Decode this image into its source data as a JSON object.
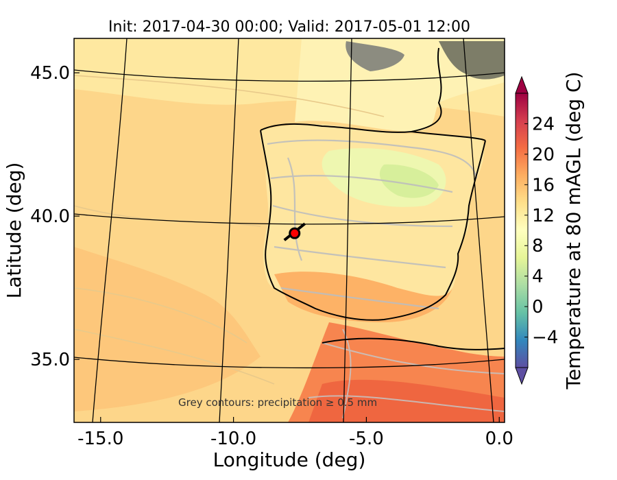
{
  "chart_data": {
    "type": "heatmap",
    "title": "Init: 2017-04-30 00:00; Valid: 2017-05-01 12:00",
    "xlabel": "Longitude (deg)",
    "ylabel": "Latitude (deg)",
    "xlim": [
      -16,
      0.2
    ],
    "ylim": [
      32.8,
      46.2
    ],
    "x_ticks": [
      {
        "value": -15,
        "label": "-15.0"
      },
      {
        "value": -10,
        "label": "-10.0"
      },
      {
        "value": -5,
        "label": "-5.0"
      },
      {
        "value": 0,
        "label": "0.0"
      }
    ],
    "y_ticks": [
      {
        "value": 45,
        "label": "45.0"
      },
      {
        "value": 40,
        "label": "40.0"
      },
      {
        "value": 35,
        "label": "35.0"
      }
    ],
    "colorbar": {
      "label": "Temperature at 80 mAGL (deg C)",
      "colormap": "Spectral_r",
      "range": [
        -8,
        28
      ],
      "extend": "both",
      "ticks": [
        {
          "value": -4,
          "label": "−4"
        },
        {
          "value": 0,
          "label": "0"
        },
        {
          "value": 4,
          "label": "4"
        },
        {
          "value": 8,
          "label": "8"
        },
        {
          "value": 12,
          "label": "12"
        },
        {
          "value": 16,
          "label": "16"
        },
        {
          "value": 20,
          "label": "20"
        },
        {
          "value": 24,
          "label": "24"
        }
      ]
    },
    "annotation": "Grey contours: precipitation $\\geq$ 0.5 mm",
    "marker": {
      "lon": -7.7,
      "lat": 39.4,
      "color": "#ff0000"
    },
    "grid": true
  }
}
